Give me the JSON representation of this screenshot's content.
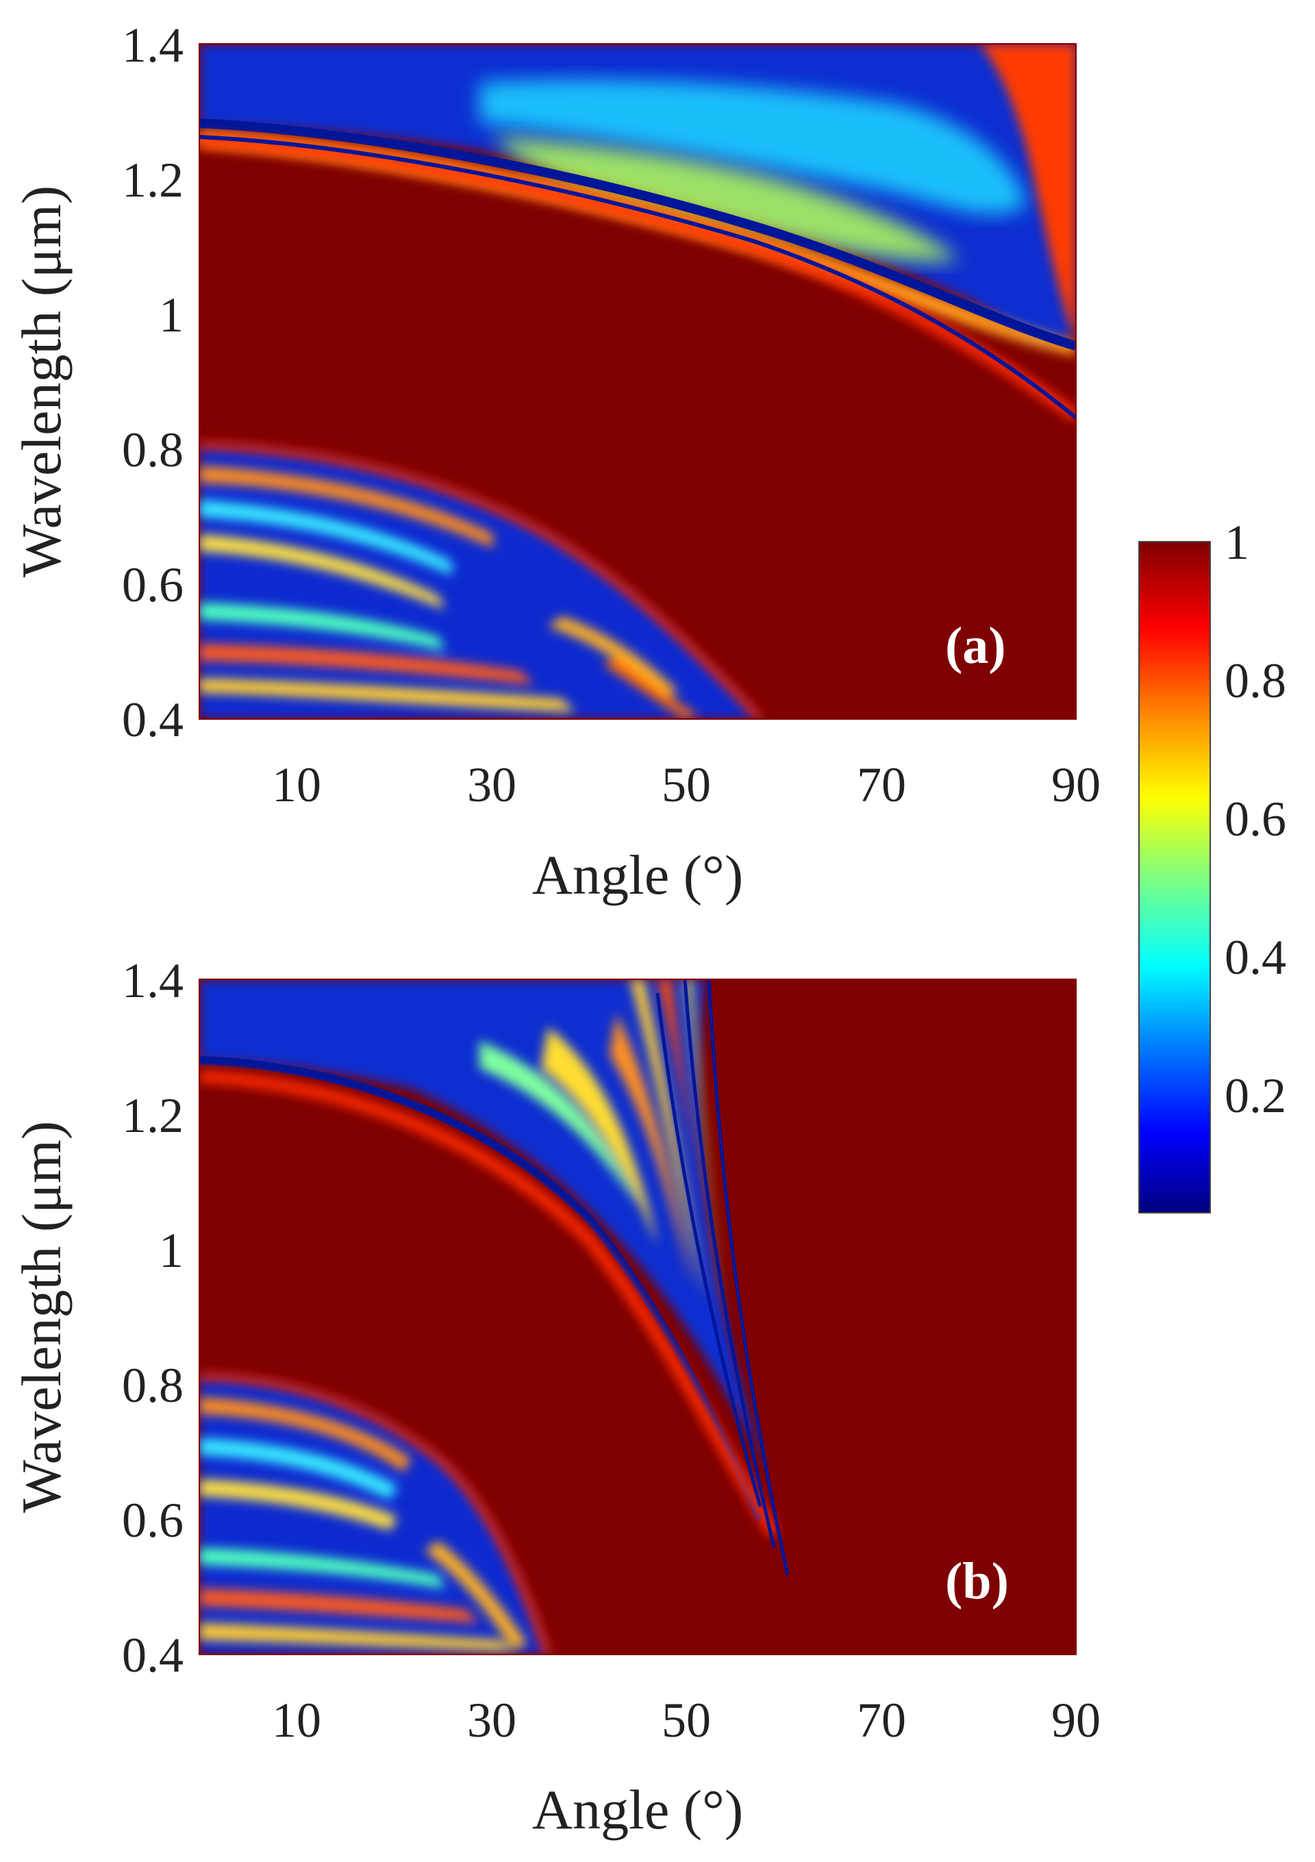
{
  "figure": {
    "colormap": "jet",
    "colors": {
      "background": "#7f0000",
      "stops": [
        "#00007f",
        "#0000ff",
        "#007fff",
        "#00ffff",
        "#7fff7f",
        "#ffff00",
        "#ff7f00",
        "#ff0000",
        "#7f0000"
      ]
    }
  },
  "chart_data": [
    {
      "type": "heatmap",
      "panel_label": "(a)",
      "xlabel": "Angle (°)",
      "ylabel": "Wavelength (μm)",
      "xlim": [
        0,
        90
      ],
      "ylim": [
        0.4,
        1.4
      ],
      "x_ticks": [
        "10",
        "30",
        "50",
        "70",
        "90"
      ],
      "x_tick_values": [
        10,
        30,
        50,
        70,
        90
      ],
      "y_ticks": [
        "0.4",
        "0.6",
        "0.8",
        "1",
        "1.2",
        "1.4"
      ],
      "y_tick_values": [
        0.4,
        0.6,
        0.8,
        1.0,
        1.2,
        1.4
      ],
      "description_features": {
        "high_reflectance_band": {
          "upper_edge_at_0deg_um": 1.25,
          "upper_edge_at_90deg_um": 0.83,
          "lower_edge_at_0deg_um": 0.8,
          "lower_edge_reaches_0p4um_at_deg": 57
        },
        "value_range": [
          0,
          1
        ]
      }
    },
    {
      "type": "heatmap",
      "panel_label": "(b)",
      "xlabel": "Angle (°)",
      "ylabel": "Wavelength (μm)",
      "xlim": [
        0,
        90
      ],
      "ylim": [
        0.4,
        1.4
      ],
      "x_ticks": [
        "10",
        "30",
        "50",
        "70",
        "90"
      ],
      "x_tick_values": [
        10,
        30,
        50,
        70,
        90
      ],
      "y_ticks": [
        "0.4",
        "0.6",
        "0.8",
        "1",
        "1.2",
        "1.4"
      ],
      "y_tick_values": [
        0.4,
        0.6,
        0.8,
        1.0,
        1.2,
        1.4
      ],
      "description_features": {
        "high_reflectance_band": {
          "upper_edge_at_0deg_um": 1.25,
          "converges_at_deg": 64,
          "lower_edge_at_0deg_um": 0.8,
          "lower_edge_reaches_0p4um_at_deg": 36
        },
        "value_range": [
          0,
          1
        ]
      }
    }
  ],
  "colorbar": {
    "ticks": [
      "0.2",
      "0.4",
      "0.6",
      "0.8",
      "1"
    ],
    "tick_values": [
      0.2,
      0.4,
      0.6,
      0.8,
      1.0
    ],
    "range": [
      0.03,
      1.0
    ]
  }
}
